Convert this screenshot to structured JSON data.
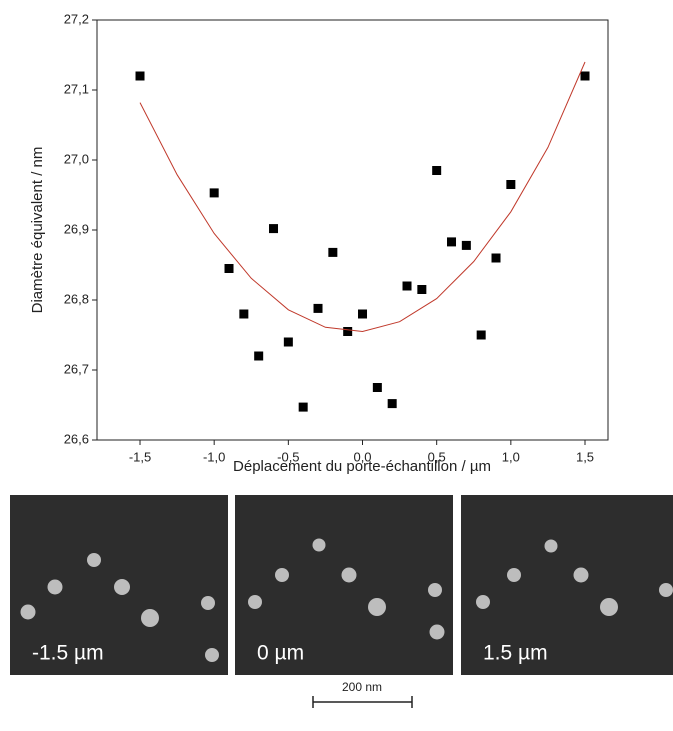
{
  "chart_data": {
    "type": "scatter",
    "x_label": "Déplacement du porte-échantillon / µm",
    "y_label": "Diamètre équivalent / nm",
    "xlim": [
      -1.79,
      1.655
    ],
    "ylim": [
      26.6,
      27.2
    ],
    "xticks": [
      {
        "value": -1.5,
        "label": "-1,5"
      },
      {
        "value": -1.0,
        "label": "-1,0"
      },
      {
        "value": -0.5,
        "label": "-0,5"
      },
      {
        "value": 0,
        "label": "0,0"
      },
      {
        "value": 0.5,
        "label": "0,5"
      },
      {
        "value": 1.0,
        "label": "1,0"
      },
      {
        "value": 1.5,
        "label": "1,5"
      }
    ],
    "yticks": [
      {
        "value": 26.6,
        "label": "26,6"
      },
      {
        "value": 26.7,
        "label": "26,7"
      },
      {
        "value": 26.8,
        "label": "26,8"
      },
      {
        "value": 26.9,
        "label": "26,9"
      },
      {
        "value": 27.0,
        "label": "27,0"
      },
      {
        "value": 27.1,
        "label": "27,1"
      },
      {
        "value": 27.2,
        "label": "27,2"
      }
    ],
    "series": [
      {
        "style": "markers",
        "color": "#000000",
        "x": [
          -1.5,
          -1.0,
          -0.9,
          -0.8,
          -0.7,
          -0.6,
          -0.5,
          -0.4,
          -0.3,
          -0.2,
          -0.1,
          0.0,
          0.1,
          0.2,
          0.3,
          0.4,
          0.5,
          0.6,
          0.7,
          0.8,
          0.9,
          1.0,
          1.5
        ],
        "values": [
          27.12,
          26.953,
          26.845,
          26.78,
          26.72,
          26.902,
          26.74,
          26.647,
          26.788,
          26.868,
          26.755,
          26.78,
          26.675,
          26.652,
          26.82,
          26.815,
          26.985,
          26.883,
          26.878,
          26.75,
          26.86,
          26.965,
          27.12
        ]
      },
      {
        "style": "line",
        "color": "#c0392b",
        "x": [
          -1.5,
          -1.25,
          -1.0,
          -0.75,
          -0.5,
          -0.25,
          0.0,
          0.25,
          0.5,
          0.75,
          1.0,
          1.25,
          1.5
        ],
        "values": [
          27.082,
          26.979,
          26.895,
          26.831,
          26.786,
          26.761,
          26.755,
          26.769,
          26.802,
          26.855,
          26.926,
          27.018,
          27.14
        ]
      }
    ]
  },
  "micrographs": {
    "panels": [
      {
        "label": "-1.5 µm"
      },
      {
        "label": "0 µm"
      },
      {
        "label": "1.5 µm"
      }
    ],
    "scale_bar": "200 nm"
  }
}
